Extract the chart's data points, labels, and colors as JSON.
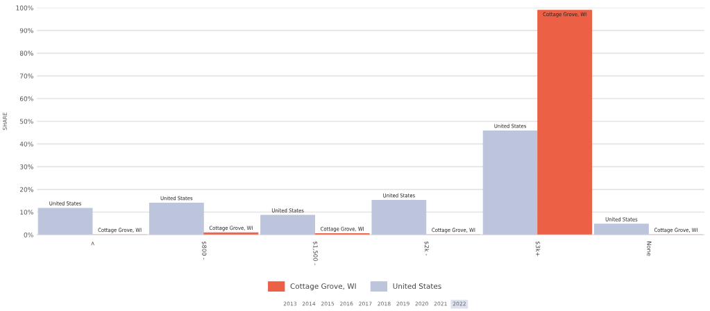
{
  "chart_data": {
    "type": "bar",
    "ylabel": "SHARE",
    "categories": [
      "<",
      "$800 -",
      "$1,500 -",
      "$2k -",
      "$3k+",
      "None"
    ],
    "series": [
      {
        "name": "United States",
        "color": "#bdc5dd",
        "values": [
          11.7,
          14,
          8.6,
          15.2,
          45.8,
          4.7
        ]
      },
      {
        "name": "Cottage Grove, WI",
        "color": "#ec6145",
        "values": [
          0,
          0.9,
          0.5,
          0,
          98.9,
          0
        ]
      }
    ],
    "ylim": [
      0,
      100
    ],
    "yticks": [
      {
        "value": 0,
        "label": "0%"
      },
      {
        "value": 10,
        "label": "10%"
      },
      {
        "value": 20,
        "label": "20%"
      },
      {
        "value": 30,
        "label": "30%"
      },
      {
        "value": 40,
        "label": "40%"
      },
      {
        "value": 50,
        "label": "50%"
      },
      {
        "value": 60,
        "label": "60%"
      },
      {
        "value": 70,
        "label": "70%"
      },
      {
        "value": 80,
        "label": "80%"
      },
      {
        "value": 90,
        "label": "90%"
      },
      {
        "value": 100,
        "label": "100%"
      }
    ],
    "grid": "y",
    "legend": "bottom",
    "annotations": [
      "2013",
      "2014",
      "2015",
      "2016",
      "2017",
      "2018",
      "2019",
      "2020",
      "2021",
      "2022"
    ]
  }
}
